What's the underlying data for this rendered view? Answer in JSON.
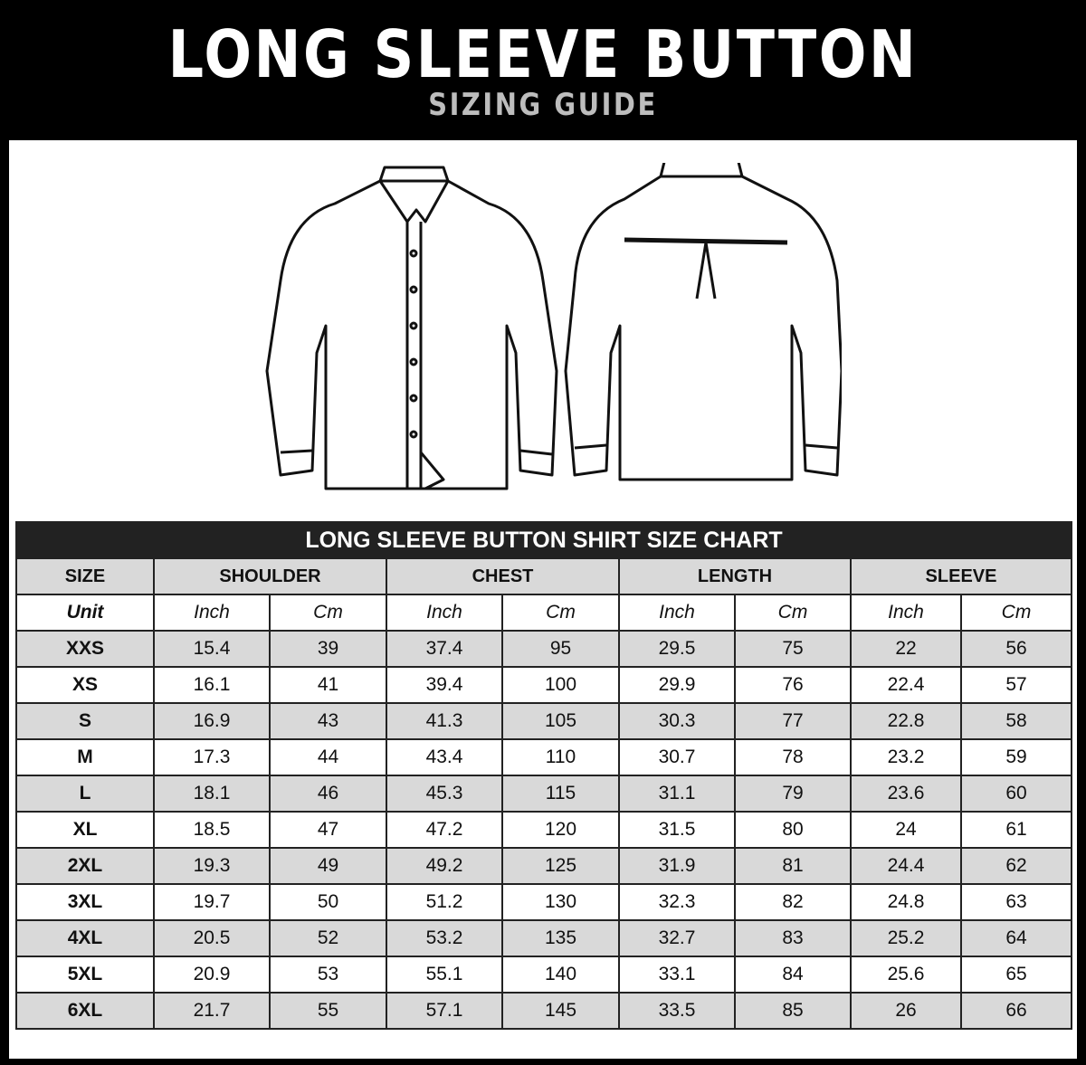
{
  "header": {
    "title": "LONG SLEEVE BUTTON",
    "subtitle": "SIZING GUIDE"
  },
  "table": {
    "caption": "LONG SLEEVE BUTTON SHIRT SIZE CHART",
    "group_headers": [
      "SIZE",
      "SHOULDER",
      "CHEST",
      "LENGTH",
      "SLEEVE"
    ],
    "unit_row": [
      "Unit",
      "Inch",
      "Cm",
      "Inch",
      "Cm",
      "Inch",
      "Cm",
      "Inch",
      "Cm"
    ],
    "rows": [
      [
        "XXS",
        "15.4",
        "39",
        "37.4",
        "95",
        "29.5",
        "75",
        "22",
        "56"
      ],
      [
        "XS",
        "16.1",
        "41",
        "39.4",
        "100",
        "29.9",
        "76",
        "22.4",
        "57"
      ],
      [
        "S",
        "16.9",
        "43",
        "41.3",
        "105",
        "30.3",
        "77",
        "22.8",
        "58"
      ],
      [
        "M",
        "17.3",
        "44",
        "43.4",
        "110",
        "30.7",
        "78",
        "23.2",
        "59"
      ],
      [
        "L",
        "18.1",
        "46",
        "45.3",
        "115",
        "31.1",
        "79",
        "23.6",
        "60"
      ],
      [
        "XL",
        "18.5",
        "47",
        "47.2",
        "120",
        "31.5",
        "80",
        "24",
        "61"
      ],
      [
        "2XL",
        "19.3",
        "49",
        "49.2",
        "125",
        "31.9",
        "81",
        "24.4",
        "62"
      ],
      [
        "3XL",
        "19.7",
        "50",
        "51.2",
        "130",
        "32.3",
        "82",
        "24.8",
        "63"
      ],
      [
        "4XL",
        "20.5",
        "52",
        "53.2",
        "135",
        "32.7",
        "83",
        "25.2",
        "64"
      ],
      [
        "5XL",
        "20.9",
        "53",
        "55.1",
        "140",
        "33.1",
        "84",
        "25.6",
        "65"
      ],
      [
        "6XL",
        "21.7",
        "55",
        "57.1",
        "145",
        "33.5",
        "85",
        "26",
        "66"
      ]
    ]
  }
}
